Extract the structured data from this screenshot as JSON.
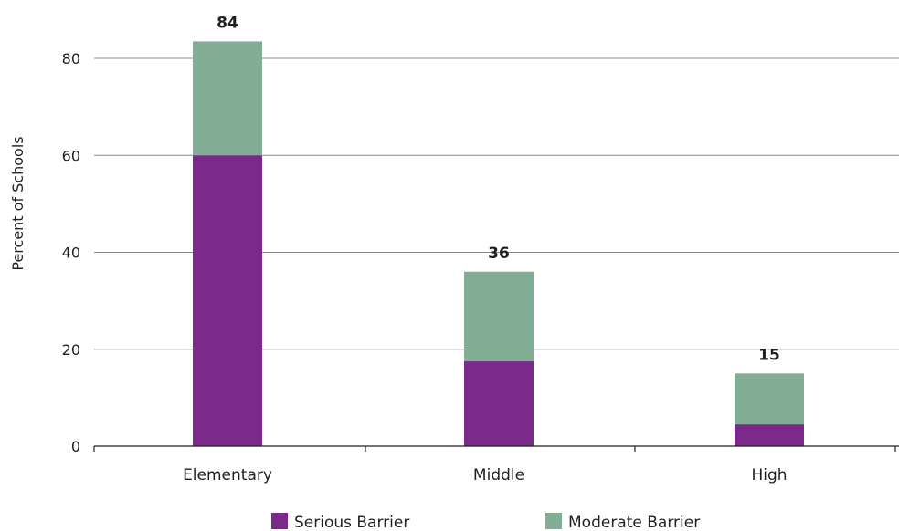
{
  "chart_data": {
    "type": "bar",
    "stacked": true,
    "categories": [
      "Elementary",
      "Middle",
      "High"
    ],
    "series": [
      {
        "name": "Serious Barrier",
        "color": "#7b2a8c",
        "values": [
          60,
          17.5,
          4.5
        ]
      },
      {
        "name": "Moderate Barrier",
        "color": "#82ae96",
        "values": [
          23.5,
          18.5,
          10.5
        ]
      }
    ],
    "totals": [
      "84",
      "36",
      "15"
    ],
    "ylabel": "Percent of Schools",
    "xlabel": "",
    "ylim": [
      0,
      80
    ],
    "yticks": [
      "0",
      "20",
      "40",
      "60",
      "80"
    ],
    "grid": true,
    "legend_position": "bottom"
  }
}
